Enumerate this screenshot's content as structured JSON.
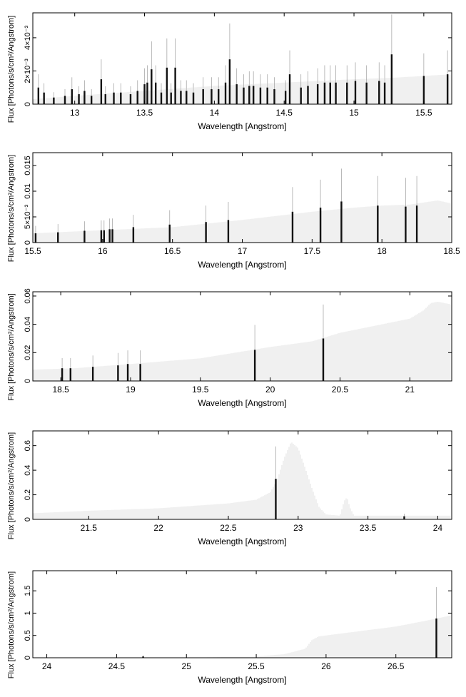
{
  "chart_data": [
    {
      "type": "line",
      "xlabel": "Wavelength [Angstrom]",
      "ylabel": "Flux [Photons/s/cm²/Angstrom]",
      "xlim": [
        12.7,
        15.7
      ],
      "ylim": [
        0,
        0.0055
      ],
      "x_ticks": [
        13,
        13.5,
        14,
        14.5,
        15,
        15.5
      ],
      "x_tick_labels": [
        "13",
        "13.5",
        "14",
        "14.5",
        "15",
        "15.5"
      ],
      "y_ticks": [
        0,
        0.002,
        0.004
      ],
      "y_tick_labels": [
        "0",
        "2×10⁻³",
        "4×10⁻³"
      ],
      "model_curve": {
        "x": [
          12.7,
          13.0,
          13.5,
          14.0,
          14.5,
          15.0,
          15.3,
          15.5,
          15.7
        ],
        "y": [
          0.0003,
          0.0005,
          0.0008,
          0.0011,
          0.0013,
          0.0015,
          0.0016,
          0.0017,
          0.0018
        ]
      },
      "series": [
        {
          "x": [
            12.74,
            12.78,
            12.85,
            12.93,
            12.98,
            13.03,
            13.07,
            13.12,
            13.19,
            13.22,
            13.28,
            13.33,
            13.4,
            13.45,
            13.5,
            13.52,
            13.55,
            13.58,
            13.62,
            13.66,
            13.69,
            13.72,
            13.76,
            13.8,
            13.85,
            13.92,
            13.98,
            14.03,
            14.08,
            14.11,
            14.16,
            14.21,
            14.25,
            14.28,
            14.33,
            14.38,
            14.43,
            14.51,
            14.54,
            14.62,
            14.67,
            14.74,
            14.79,
            14.83,
            14.87,
            14.95,
            15.01,
            15.09,
            15.18,
            15.22,
            15.27,
            15.5,
            15.67
          ],
          "y": [
            0.001,
            0.0007,
            0.0004,
            0.0005,
            0.0009,
            0.0006,
            0.0008,
            0.0005,
            0.0015,
            0.0006,
            0.0007,
            0.0007,
            0.0006,
            0.0008,
            0.0012,
            0.0013,
            0.0021,
            0.0013,
            0.0007,
            0.0022,
            0.0007,
            0.0022,
            0.0008,
            0.0008,
            0.0007,
            0.0009,
            0.0009,
            0.0009,
            0.0013,
            0.0027,
            0.0012,
            0.001,
            0.0011,
            0.0011,
            0.001,
            0.001,
            0.0009,
            0.0008,
            0.0018,
            0.001,
            0.0011,
            0.0012,
            0.0013,
            0.0013,
            0.0013,
            0.0013,
            0.0014,
            0.0013,
            0.0014,
            0.0013,
            0.003,
            0.0017,
            0.0018
          ]
        }
      ]
    },
    {
      "type": "line",
      "xlabel": "Wavelength [Angstrom]",
      "ylabel": "Flux [Photons/s/cm²/Angstrom]",
      "xlim": [
        15.5,
        18.5
      ],
      "ylim": [
        0,
        0.0175
      ],
      "x_ticks": [
        15.5,
        16,
        16.5,
        17,
        17.5,
        18,
        18.5
      ],
      "x_tick_labels": [
        "15.5",
        "16",
        "16.5",
        "17",
        "17.5",
        "18",
        "18.5"
      ],
      "y_ticks": [
        0,
        0.005,
        0.01,
        0.015
      ],
      "y_tick_labels": [
        "0",
        "5×10⁻³",
        "0.01",
        "0.015"
      ],
      "model_curve": {
        "x": [
          15.5,
          16.0,
          16.5,
          17.0,
          17.5,
          17.8,
          18.0,
          18.2,
          18.4,
          18.5
        ],
        "y": [
          0.0018,
          0.0024,
          0.003,
          0.0044,
          0.006,
          0.0068,
          0.0072,
          0.0074,
          0.0082,
          0.0076
        ]
      },
      "series": [
        {
          "x": [
            15.52,
            15.68,
            15.87,
            15.99,
            16.01,
            16.05,
            16.07,
            16.22,
            16.48,
            16.74,
            16.9,
            17.36,
            17.56,
            17.71,
            17.97,
            18.17,
            18.25
          ],
          "y": [
            0.0018,
            0.002,
            0.0023,
            0.0024,
            0.0024,
            0.0026,
            0.0026,
            0.003,
            0.0035,
            0.004,
            0.0044,
            0.006,
            0.0068,
            0.008,
            0.0072,
            0.007,
            0.0072
          ]
        }
      ]
    },
    {
      "type": "line",
      "xlabel": "Wavelength [Angstrom]",
      "ylabel": "Flux [Photons/s/cm²/Angstrom]",
      "xlim": [
        18.3,
        21.3
      ],
      "ylim": [
        0,
        0.063
      ],
      "x_ticks": [
        18.5,
        19,
        19.5,
        20,
        20.5,
        21
      ],
      "x_tick_labels": [
        "18.5",
        "19",
        "19.5",
        "20",
        "20.5",
        "21"
      ],
      "y_ticks": [
        0,
        0.02,
        0.04,
        0.06
      ],
      "y_tick_labels": [
        "0",
        "0.02",
        "0.04",
        "0.06"
      ],
      "model_curve": {
        "x": [
          18.3,
          18.6,
          19.0,
          19.5,
          20.0,
          20.3,
          20.5,
          20.8,
          21.0,
          21.1,
          21.15,
          21.2,
          21.3
        ],
        "y": [
          0.008,
          0.009,
          0.012,
          0.016,
          0.024,
          0.028,
          0.034,
          0.04,
          0.044,
          0.05,
          0.055,
          0.056,
          0.054
        ]
      },
      "series": [
        {
          "x": [
            18.51,
            18.57,
            18.73,
            18.91,
            18.98,
            19.07,
            19.89,
            20.38
          ],
          "y": [
            0.009,
            0.009,
            0.01,
            0.011,
            0.012,
            0.012,
            0.022,
            0.03
          ]
        }
      ]
    },
    {
      "type": "line",
      "xlabel": "Wavelength [Angstrom]",
      "ylabel": "Flux [Photons/s/cm²/Angstrom]",
      "xlim": [
        21.1,
        24.1
      ],
      "ylim": [
        0,
        0.72
      ],
      "x_ticks": [
        21.5,
        22,
        22.5,
        23,
        23.5,
        24
      ],
      "x_tick_labels": [
        "21.5",
        "22",
        "22.5",
        "23",
        "23.5",
        "24"
      ],
      "y_ticks": [
        0,
        0.2,
        0.4,
        0.6
      ],
      "y_tick_labels": [
        "0",
        "0.2",
        "0.4",
        "0.6"
      ],
      "model_curve": {
        "x": [
          21.1,
          21.5,
          22.0,
          22.5,
          22.7,
          22.8,
          22.85,
          22.9,
          22.95,
          23.0,
          23.05,
          23.1,
          23.15,
          23.2,
          23.3,
          23.33,
          23.35,
          23.37,
          23.4,
          24.1
        ],
        "y": [
          0.05,
          0.07,
          0.09,
          0.13,
          0.16,
          0.22,
          0.32,
          0.5,
          0.63,
          0.58,
          0.42,
          0.25,
          0.1,
          0.04,
          0.03,
          0.15,
          0.18,
          0.1,
          0.03,
          0.03
        ]
      },
      "series": [
        {
          "x": [
            22.84,
            23.76
          ],
          "y": [
            0.33,
            0.025
          ]
        }
      ]
    },
    {
      "type": "line",
      "xlabel": "Wavelength [Angstrom]",
      "ylabel": "Flux [Photons/s/cm²/Angstrom]",
      "xlim": [
        23.9,
        26.9
      ],
      "ylim": [
        0,
        1.95
      ],
      "x_ticks": [
        24,
        24.5,
        25,
        25.5,
        26,
        26.5
      ],
      "x_tick_labels": [
        "24",
        "24.5",
        "25",
        "25.5",
        "26",
        "26.5"
      ],
      "y_ticks": [
        0,
        0.5,
        1,
        1.5
      ],
      "y_tick_labels": [
        "0",
        "0.5",
        "1",
        "1.5"
      ],
      "model_curve": {
        "x": [
          23.9,
          25.0,
          25.5,
          25.7,
          25.85,
          25.9,
          25.95,
          26.0,
          26.3,
          26.5,
          26.7,
          26.9
        ],
        "y": [
          0.0,
          0.0,
          0.03,
          0.08,
          0.2,
          0.4,
          0.48,
          0.5,
          0.62,
          0.7,
          0.82,
          0.95
        ]
      },
      "series": [
        {
          "x": [
            24.69,
            26.79
          ],
          "y": [
            0.03,
            0.88
          ]
        }
      ]
    }
  ]
}
